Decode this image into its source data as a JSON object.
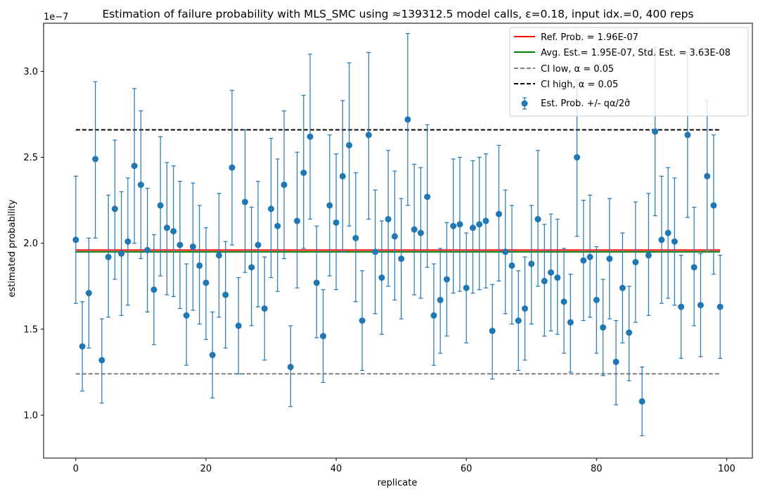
{
  "chart_data": {
    "type": "scatter",
    "title": "Estimation of failure probability with MLS_SMC using ≈139312.5 model calls, ε=0.18, input idx.=0, 400 reps",
    "xlabel": "replicate",
    "ylabel": "estimated probability",
    "y_offset_label": "1e−7",
    "xlim": [
      -4.95,
      103.95
    ],
    "ylim": [
      0.75,
      3.28
    ],
    "x_ticks": [
      0,
      20,
      40,
      60,
      80,
      100
    ],
    "x_tick_labels": [
      "0",
      "20",
      "40",
      "60",
      "80",
      "100"
    ],
    "y_ticks": [
      1.0,
      1.5,
      2.0,
      2.5,
      3.0
    ],
    "y_tick_labels": [
      "1.0",
      "1.5",
      "2.0",
      "2.5",
      "3.0"
    ],
    "grid": false,
    "legend_position": "top-right",
    "legend": [
      {
        "label": "Ref. Prob. = 1.96E-07",
        "style": "solid",
        "color": "#ff0000"
      },
      {
        "label": "Avg. Est.= 1.95E-07, Std. Est. = 3.63E-08",
        "style": "solid",
        "color": "#008000"
      },
      {
        "label": "CI low, α = 0.05",
        "style": "dashed",
        "color": "#808080"
      },
      {
        "label": "CI high, α = 0.05",
        "style": "dashed",
        "color": "#000000"
      },
      {
        "label": "Est. Prob. +/- qα/2σ̂",
        "style": "errorbar",
        "color": "#1f77b4"
      }
    ],
    "reference_lines": {
      "ref_prob": {
        "y": 1.96,
        "x_range": [
          0,
          99
        ],
        "color": "#ff0000"
      },
      "avg_est": {
        "y": 1.95,
        "x_range": [
          0,
          99
        ],
        "color": "#008000"
      },
      "ci_low": {
        "y": 1.24,
        "x_range": [
          0,
          99
        ],
        "color": "#808080"
      },
      "ci_high": {
        "y": 2.66,
        "x_range": [
          0,
          99
        ],
        "color": "#000000"
      }
    },
    "series": [
      {
        "name": "Est. Prob. +/- qα/2σ̂",
        "color": "#1f77b4",
        "points": [
          {
            "x": 0,
            "y": 2.02,
            "lo": 1.65,
            "hi": 2.39
          },
          {
            "x": 1,
            "y": 1.4,
            "lo": 1.14,
            "hi": 1.66
          },
          {
            "x": 2,
            "y": 1.71,
            "lo": 1.39,
            "hi": 2.03
          },
          {
            "x": 3,
            "y": 2.49,
            "lo": 2.03,
            "hi": 2.94
          },
          {
            "x": 4,
            "y": 1.32,
            "lo": 1.07,
            "hi": 1.56
          },
          {
            "x": 5,
            "y": 1.92,
            "lo": 1.57,
            "hi": 2.28
          },
          {
            "x": 6,
            "y": 2.2,
            "lo": 1.79,
            "hi": 2.6
          },
          {
            "x": 7,
            "y": 1.94,
            "lo": 1.58,
            "hi": 2.3
          },
          {
            "x": 8,
            "y": 2.01,
            "lo": 1.64,
            "hi": 2.38
          },
          {
            "x": 9,
            "y": 2.45,
            "lo": 2.0,
            "hi": 2.9
          },
          {
            "x": 10,
            "y": 2.34,
            "lo": 1.91,
            "hi": 2.77
          },
          {
            "x": 11,
            "y": 1.96,
            "lo": 1.6,
            "hi": 2.32
          },
          {
            "x": 12,
            "y": 1.73,
            "lo": 1.41,
            "hi": 2.05
          },
          {
            "x": 13,
            "y": 2.22,
            "lo": 1.81,
            "hi": 2.62
          },
          {
            "x": 14,
            "y": 2.09,
            "lo": 1.7,
            "hi": 2.47
          },
          {
            "x": 15,
            "y": 2.07,
            "lo": 1.69,
            "hi": 2.45
          },
          {
            "x": 16,
            "y": 1.99,
            "lo": 1.62,
            "hi": 2.36
          },
          {
            "x": 17,
            "y": 1.58,
            "lo": 1.29,
            "hi": 1.88
          },
          {
            "x": 18,
            "y": 1.98,
            "lo": 1.61,
            "hi": 2.35
          },
          {
            "x": 19,
            "y": 1.87,
            "lo": 1.53,
            "hi": 2.22
          },
          {
            "x": 20,
            "y": 1.77,
            "lo": 1.44,
            "hi": 2.09
          },
          {
            "x": 21,
            "y": 1.35,
            "lo": 1.1,
            "hi": 1.6
          },
          {
            "x": 22,
            "y": 1.93,
            "lo": 1.57,
            "hi": 2.29
          },
          {
            "x": 23,
            "y": 1.7,
            "lo": 1.39,
            "hi": 2.01
          },
          {
            "x": 24,
            "y": 2.44,
            "lo": 1.99,
            "hi": 2.89
          },
          {
            "x": 25,
            "y": 1.52,
            "lo": 1.24,
            "hi": 1.8
          },
          {
            "x": 26,
            "y": 2.24,
            "lo": 1.83,
            "hi": 2.66
          },
          {
            "x": 27,
            "y": 1.86,
            "lo": 1.52,
            "hi": 2.21
          },
          {
            "x": 28,
            "y": 1.99,
            "lo": 1.63,
            "hi": 2.36
          },
          {
            "x": 29,
            "y": 1.62,
            "lo": 1.32,
            "hi": 1.92
          },
          {
            "x": 30,
            "y": 2.2,
            "lo": 1.8,
            "hi": 2.61
          },
          {
            "x": 31,
            "y": 2.1,
            "lo": 1.72,
            "hi": 2.49
          },
          {
            "x": 32,
            "y": 2.34,
            "lo": 1.91,
            "hi": 2.77
          },
          {
            "x": 33,
            "y": 1.28,
            "lo": 1.05,
            "hi": 1.52
          },
          {
            "x": 34,
            "y": 2.13,
            "lo": 1.74,
            "hi": 2.53
          },
          {
            "x": 35,
            "y": 2.41,
            "lo": 1.97,
            "hi": 2.86
          },
          {
            "x": 36,
            "y": 2.62,
            "lo": 2.14,
            "hi": 3.1
          },
          {
            "x": 37,
            "y": 1.77,
            "lo": 1.45,
            "hi": 2.1
          },
          {
            "x": 38,
            "y": 1.46,
            "lo": 1.19,
            "hi": 1.73
          },
          {
            "x": 39,
            "y": 2.22,
            "lo": 1.81,
            "hi": 2.63
          },
          {
            "x": 40,
            "y": 2.12,
            "lo": 1.73,
            "hi": 2.52
          },
          {
            "x": 41,
            "y": 2.39,
            "lo": 1.95,
            "hi": 2.83
          },
          {
            "x": 42,
            "y": 2.57,
            "lo": 2.1,
            "hi": 3.05
          },
          {
            "x": 43,
            "y": 2.03,
            "lo": 1.66,
            "hi": 2.41
          },
          {
            "x": 44,
            "y": 1.55,
            "lo": 1.26,
            "hi": 1.84
          },
          {
            "x": 45,
            "y": 2.63,
            "lo": 2.14,
            "hi": 3.11
          },
          {
            "x": 46,
            "y": 1.95,
            "lo": 1.59,
            "hi": 2.31
          },
          {
            "x": 47,
            "y": 1.8,
            "lo": 1.47,
            "hi": 2.13
          },
          {
            "x": 48,
            "y": 2.14,
            "lo": 1.75,
            "hi": 2.54
          },
          {
            "x": 49,
            "y": 2.04,
            "lo": 1.67,
            "hi": 2.42
          },
          {
            "x": 50,
            "y": 1.91,
            "lo": 1.56,
            "hi": 2.26
          },
          {
            "x": 51,
            "y": 2.72,
            "lo": 2.22,
            "hi": 3.22
          },
          {
            "x": 52,
            "y": 2.08,
            "lo": 1.7,
            "hi": 2.46
          },
          {
            "x": 53,
            "y": 2.06,
            "lo": 1.68,
            "hi": 2.44
          },
          {
            "x": 54,
            "y": 2.27,
            "lo": 1.86,
            "hi": 2.69
          },
          {
            "x": 55,
            "y": 1.58,
            "lo": 1.29,
            "hi": 1.88
          },
          {
            "x": 56,
            "y": 1.67,
            "lo": 1.36,
            "hi": 1.97
          },
          {
            "x": 57,
            "y": 1.79,
            "lo": 1.46,
            "hi": 2.12
          },
          {
            "x": 58,
            "y": 2.1,
            "lo": 1.71,
            "hi": 2.49
          },
          {
            "x": 59,
            "y": 2.11,
            "lo": 1.72,
            "hi": 2.5
          },
          {
            "x": 60,
            "y": 1.74,
            "lo": 1.42,
            "hi": 2.06
          },
          {
            "x": 61,
            "y": 2.09,
            "lo": 1.71,
            "hi": 2.48
          },
          {
            "x": 62,
            "y": 2.11,
            "lo": 1.73,
            "hi": 2.5
          },
          {
            "x": 63,
            "y": 2.13,
            "lo": 1.74,
            "hi": 2.52
          },
          {
            "x": 64,
            "y": 1.49,
            "lo": 1.21,
            "hi": 1.76
          },
          {
            "x": 65,
            "y": 2.17,
            "lo": 1.78,
            "hi": 2.57
          },
          {
            "x": 66,
            "y": 1.95,
            "lo": 1.59,
            "hi": 2.31
          },
          {
            "x": 67,
            "y": 1.87,
            "lo": 1.53,
            "hi": 2.22
          },
          {
            "x": 68,
            "y": 1.55,
            "lo": 1.26,
            "hi": 1.84
          },
          {
            "x": 69,
            "y": 1.62,
            "lo": 1.32,
            "hi": 1.92
          },
          {
            "x": 70,
            "y": 1.88,
            "lo": 1.53,
            "hi": 2.22
          },
          {
            "x": 71,
            "y": 2.14,
            "lo": 1.75,
            "hi": 2.54
          },
          {
            "x": 72,
            "y": 1.78,
            "lo": 1.46,
            "hi": 2.11
          },
          {
            "x": 73,
            "y": 1.83,
            "lo": 1.49,
            "hi": 2.17
          },
          {
            "x": 74,
            "y": 1.8,
            "lo": 1.47,
            "hi": 2.14
          },
          {
            "x": 75,
            "y": 1.66,
            "lo": 1.36,
            "hi": 1.97
          },
          {
            "x": 76,
            "y": 1.54,
            "lo": 1.25,
            "hi": 1.82
          },
          {
            "x": 77,
            "y": 2.5,
            "lo": 2.04,
            "hi": 2.95
          },
          {
            "x": 78,
            "y": 1.9,
            "lo": 1.55,
            "hi": 2.25
          },
          {
            "x": 79,
            "y": 1.92,
            "lo": 1.57,
            "hi": 2.28
          },
          {
            "x": 80,
            "y": 1.67,
            "lo": 1.36,
            "hi": 1.98
          },
          {
            "x": 81,
            "y": 1.51,
            "lo": 1.23,
            "hi": 1.79
          },
          {
            "x": 82,
            "y": 1.91,
            "lo": 1.56,
            "hi": 2.26
          },
          {
            "x": 83,
            "y": 1.31,
            "lo": 1.06,
            "hi": 1.55
          },
          {
            "x": 84,
            "y": 1.74,
            "lo": 1.42,
            "hi": 2.06
          },
          {
            "x": 85,
            "y": 1.48,
            "lo": 1.2,
            "hi": 1.75
          },
          {
            "x": 86,
            "y": 1.89,
            "lo": 1.54,
            "hi": 2.24
          },
          {
            "x": 87,
            "y": 1.08,
            "lo": 0.88,
            "hi": 1.28
          },
          {
            "x": 88,
            "y": 1.93,
            "lo": 1.58,
            "hi": 2.29
          },
          {
            "x": 89,
            "y": 2.65,
            "lo": 2.16,
            "hi": 3.14
          },
          {
            "x": 90,
            "y": 2.02,
            "lo": 1.65,
            "hi": 2.39
          },
          {
            "x": 91,
            "y": 2.06,
            "lo": 1.68,
            "hi": 2.44
          },
          {
            "x": 92,
            "y": 2.01,
            "lo": 1.64,
            "hi": 2.38
          },
          {
            "x": 93,
            "y": 1.63,
            "lo": 1.33,
            "hi": 1.93
          },
          {
            "x": 94,
            "y": 2.63,
            "lo": 2.15,
            "hi": 3.11
          },
          {
            "x": 95,
            "y": 1.86,
            "lo": 1.52,
            "hi": 2.21
          },
          {
            "x": 96,
            "y": 1.64,
            "lo": 1.34,
            "hi": 1.94
          },
          {
            "x": 97,
            "y": 2.39,
            "lo": 1.96,
            "hi": 2.83
          },
          {
            "x": 98,
            "y": 2.22,
            "lo": 1.82,
            "hi": 2.63
          },
          {
            "x": 99,
            "y": 1.63,
            "lo": 1.33,
            "hi": 1.93
          }
        ]
      }
    ]
  }
}
